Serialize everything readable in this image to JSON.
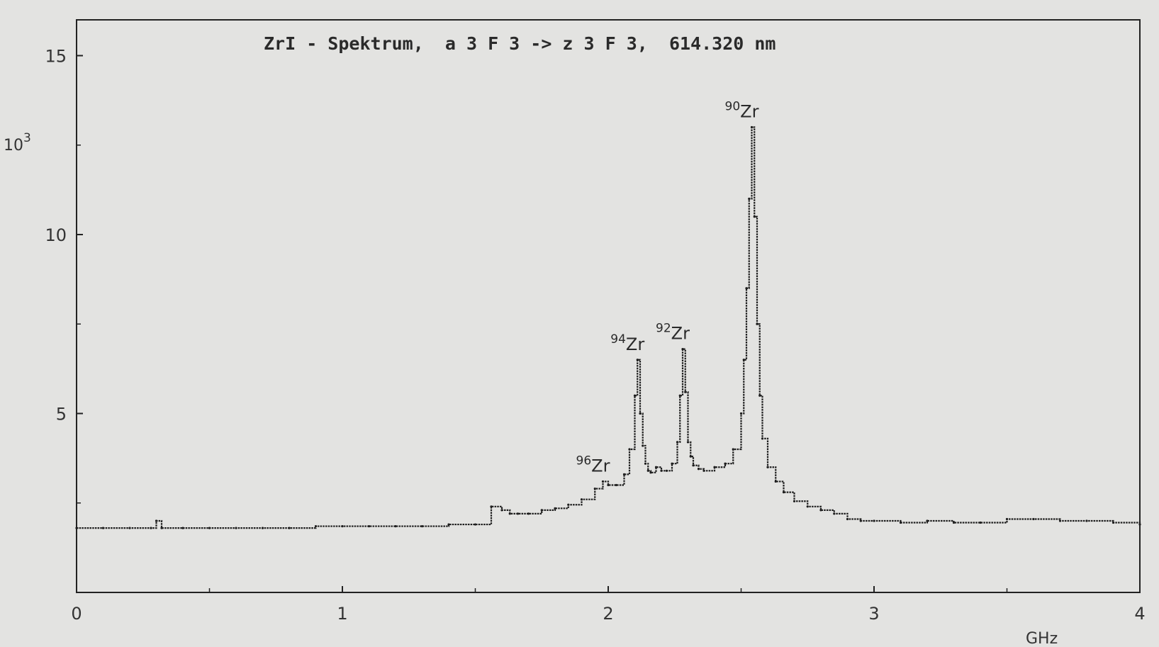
{
  "chart_data": {
    "type": "line",
    "title": "ZrI - Spektrum,  a 3 F 3 -> z 3 F 3,  614.320 nm",
    "xlabel": "GHz",
    "ylabel": "",
    "y_multiplier_label": "10",
    "y_multiplier_exp": "3",
    "xlim": [
      0,
      4
    ],
    "ylim": [
      0,
      16
    ],
    "x_ticks": [
      0,
      1,
      2,
      3,
      4
    ],
    "x_tick_labels": [
      "0",
      "1",
      "2",
      "3",
      "4"
    ],
    "y_ticks": [
      5,
      10,
      15
    ],
    "y_tick_labels": [
      "5",
      "10",
      "15"
    ],
    "grid": false,
    "series": [
      {
        "x": [
          0.0,
          0.1,
          0.2,
          0.28,
          0.3,
          0.32,
          0.4,
          0.5,
          0.6,
          0.7,
          0.8,
          0.9,
          1.0,
          1.1,
          1.2,
          1.3,
          1.4,
          1.5,
          1.56,
          1.6,
          1.63,
          1.66,
          1.7,
          1.75,
          1.8,
          1.85,
          1.9,
          1.95,
          1.98,
          2.0,
          2.03,
          2.06,
          2.08,
          2.1,
          2.11,
          2.12,
          2.13,
          2.14,
          2.15,
          2.16,
          2.18,
          2.2,
          2.22,
          2.24,
          2.26,
          2.27,
          2.28,
          2.29,
          2.3,
          2.31,
          2.32,
          2.34,
          2.36,
          2.4,
          2.44,
          2.47,
          2.5,
          2.51,
          2.52,
          2.53,
          2.54,
          2.55,
          2.56,
          2.57,
          2.58,
          2.6,
          2.63,
          2.66,
          2.7,
          2.75,
          2.8,
          2.85,
          2.9,
          2.95,
          3.0,
          3.1,
          3.2,
          3.3,
          3.4,
          3.5,
          3.6,
          3.7,
          3.8,
          3.9,
          4.0
        ],
        "values": [
          1.8,
          1.8,
          1.8,
          1.8,
          2.0,
          1.8,
          1.8,
          1.8,
          1.8,
          1.8,
          1.8,
          1.85,
          1.85,
          1.85,
          1.85,
          1.85,
          1.9,
          1.9,
          2.4,
          2.3,
          2.2,
          2.2,
          2.2,
          2.3,
          2.35,
          2.45,
          2.6,
          2.9,
          3.1,
          3.0,
          3.0,
          3.3,
          4.0,
          5.5,
          6.5,
          5.0,
          4.1,
          3.6,
          3.4,
          3.35,
          3.5,
          3.4,
          3.4,
          3.6,
          4.2,
          5.5,
          6.8,
          5.6,
          4.2,
          3.8,
          3.55,
          3.45,
          3.4,
          3.5,
          3.6,
          4.0,
          5.0,
          6.5,
          8.5,
          11.0,
          13.0,
          10.5,
          7.5,
          5.5,
          4.3,
          3.5,
          3.1,
          2.8,
          2.55,
          2.4,
          2.3,
          2.2,
          2.05,
          2.0,
          2.0,
          1.95,
          2.0,
          1.95,
          1.95,
          2.05,
          2.05,
          2.0,
          2.0,
          1.95,
          1.9
        ]
      }
    ],
    "annotations": [
      {
        "mass": "96",
        "element": "Zr",
        "x": 1.98,
        "y": 3.1
      },
      {
        "mass": "94",
        "element": "Zr",
        "x": 2.11,
        "y": 6.5
      },
      {
        "mass": "92",
        "element": "Zr",
        "x": 2.28,
        "y": 6.8
      },
      {
        "mass": "90",
        "element": "Zr",
        "x": 2.54,
        "y": 13.0
      }
    ]
  }
}
